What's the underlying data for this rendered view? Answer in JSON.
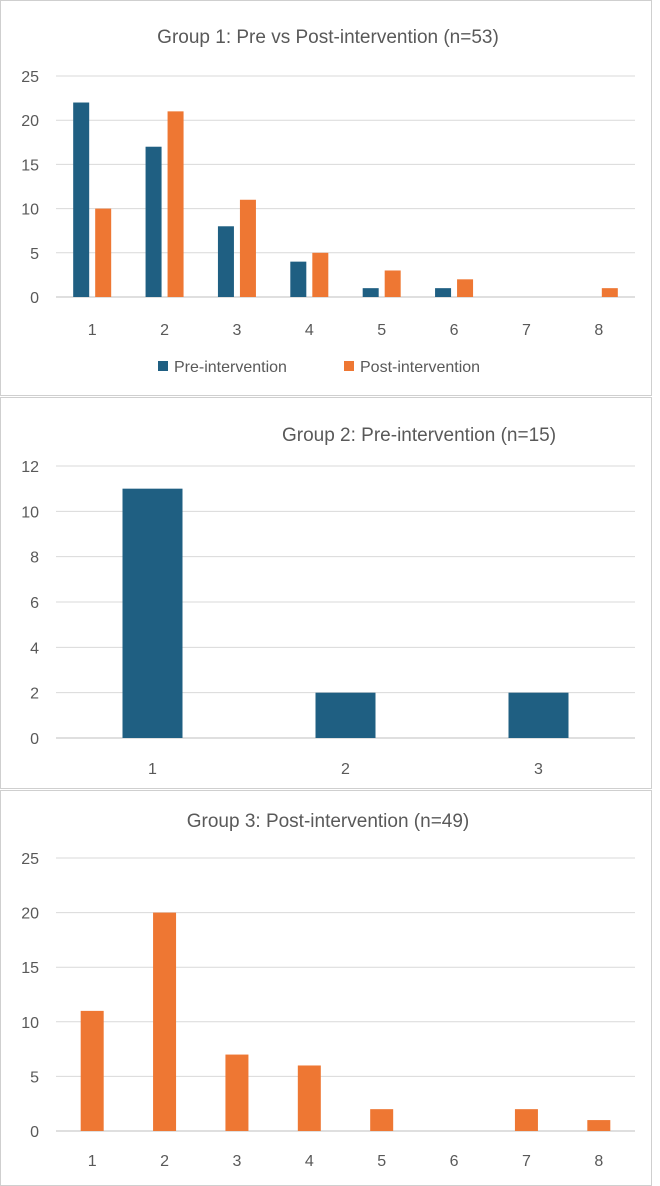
{
  "colors": {
    "pre": "#1f5f82",
    "post": "#ee7733"
  },
  "chart_data": [
    {
      "type": "bar",
      "title": "Group 1: Pre vs Post-intervention (n=53)",
      "categories": [
        "1",
        "2",
        "3",
        "4",
        "5",
        "6",
        "7",
        "8"
      ],
      "series": [
        {
          "name": "Pre-intervention",
          "values": [
            22,
            17,
            8,
            4,
            1,
            1,
            0,
            0
          ]
        },
        {
          "name": "Post-intervention",
          "values": [
            10,
            21,
            11,
            5,
            3,
            2,
            0,
            1
          ]
        }
      ],
      "ylim": [
        0,
        25
      ],
      "yticks": [
        0,
        5,
        10,
        15,
        20,
        25
      ],
      "legend": "bottom",
      "grid": true
    },
    {
      "type": "bar",
      "title": "Group 2: Pre-intervention (n=15)",
      "categories": [
        "1",
        "2",
        "3"
      ],
      "series": [
        {
          "name": "Pre-intervention",
          "values": [
            11,
            2,
            2
          ]
        }
      ],
      "ylim": [
        0,
        12
      ],
      "yticks": [
        0,
        2,
        4,
        6,
        8,
        10,
        12
      ],
      "grid": true
    },
    {
      "type": "bar",
      "title": "Group 3: Post-intervention (n=49)",
      "categories": [
        "1",
        "2",
        "3",
        "4",
        "5",
        "6",
        "7",
        "8"
      ],
      "series": [
        {
          "name": "Post-intervention",
          "values": [
            11,
            20,
            7,
            6,
            2,
            0,
            2,
            1
          ]
        }
      ],
      "ylim": [
        0,
        25
      ],
      "yticks": [
        0,
        5,
        10,
        15,
        20,
        25
      ],
      "grid": true
    }
  ]
}
